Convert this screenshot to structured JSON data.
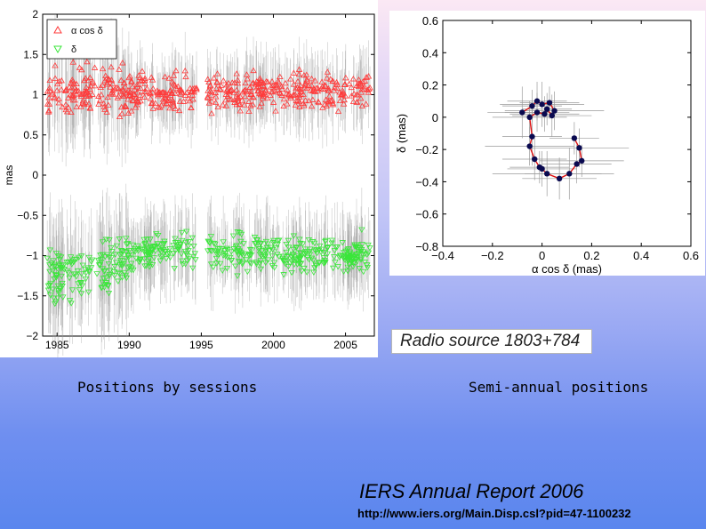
{
  "captions": {
    "left": "Positions by sessions",
    "right": "Semi-annual positions",
    "source": "Radio source 1803+784",
    "report": "IERS Annual Report 2006",
    "url": "http://www.iers.org/Main.Disp.csl?pid=47-1100232"
  },
  "colors": {
    "alpha": "#ff3a3a",
    "delta": "#3ae63a",
    "errorbar": "#9a9a9a",
    "track": "#dd1111",
    "point": "#0a0a50"
  },
  "chart_data": [
    {
      "type": "scatter",
      "title": "",
      "xlabel": "",
      "ylabel": "mas",
      "xlim": [
        1984,
        2007
      ],
      "ylim": [
        -2,
        2
      ],
      "x_ticks": [
        1985,
        1990,
        1995,
        2000,
        2005
      ],
      "y_ticks": [
        2,
        1.5,
        1,
        0.5,
        0,
        -0.5,
        -1,
        -1.5,
        -2
      ],
      "y_tick_labels": [
        "2",
        "1.5",
        "1",
        "0.5",
        "0",
        "−0.5",
        "−1",
        "−1.5",
        "−2"
      ],
      "legend": {
        "position": "top-left",
        "entries": [
          "α cos δ",
          "δ"
        ]
      },
      "series": [
        {
          "name": "α cos δ",
          "marker": "triangle-up",
          "mean": 1.05,
          "mean_trend": [
            [
              1984,
              1.0
            ],
            [
              1995,
              1.02
            ],
            [
              2007,
              1.05
            ]
          ],
          "spread": 0.22,
          "error": 0.3
        },
        {
          "name": "δ",
          "marker": "triangle-down",
          "mean": -1.05,
          "mean_trend": [
            [
              1984,
              -1.3
            ],
            [
              1988,
              -1.15
            ],
            [
              1991,
              -0.95
            ],
            [
              1995,
              -0.95
            ],
            [
              2007,
              -1.0
            ]
          ],
          "spread": 0.22,
          "error": 0.35
        }
      ],
      "observation_gaps": [
        [
          1994.7,
          1995.4
        ]
      ]
    },
    {
      "type": "line",
      "title": "",
      "xlabel": "α cos δ (mas)",
      "ylabel": "δ (mas)",
      "xlim": [
        -0.4,
        0.6
      ],
      "ylim": [
        -0.8,
        0.6
      ],
      "x_ticks": [
        -0.4,
        -0.2,
        0,
        0.2,
        0.4,
        0.6
      ],
      "x_tick_labels": [
        "−0.4",
        "−0.2",
        "0",
        "0.2",
        "0.4",
        "0.6"
      ],
      "y_ticks": [
        0.6,
        0.4,
        0.2,
        0,
        -0.2,
        -0.4,
        -0.6,
        -0.8
      ],
      "y_tick_labels": [
        "0.6",
        "0.4",
        "0.2",
        "0",
        "−0.2",
        "−0.4",
        "−0.6",
        "−0.8"
      ],
      "points": [
        {
          "x": -0.08,
          "y": 0.03
        },
        {
          "x": -0.04,
          "y": 0.07
        },
        {
          "x": -0.02,
          "y": 0.1
        },
        {
          "x": 0.0,
          "y": 0.08
        },
        {
          "x": 0.03,
          "y": 0.09
        },
        {
          "x": 0.05,
          "y": 0.04
        },
        {
          "x": 0.04,
          "y": 0.01
        },
        {
          "x": 0.02,
          "y": 0.05
        },
        {
          "x": 0.01,
          "y": 0.02
        },
        {
          "x": -0.02,
          "y": 0.03
        },
        {
          "x": -0.05,
          "y": 0.0
        },
        {
          "x": -0.04,
          "y": -0.12
        },
        {
          "x": -0.05,
          "y": -0.18
        },
        {
          "x": -0.03,
          "y": -0.26
        },
        {
          "x": -0.01,
          "y": -0.31
        },
        {
          "x": 0.0,
          "y": -0.32
        },
        {
          "x": 0.02,
          "y": -0.35
        },
        {
          "x": 0.07,
          "y": -0.38
        },
        {
          "x": 0.11,
          "y": -0.35
        },
        {
          "x": 0.14,
          "y": -0.29
        },
        {
          "x": 0.16,
          "y": -0.27
        },
        {
          "x": 0.15,
          "y": -0.19
        },
        {
          "x": 0.13,
          "y": -0.13
        }
      ],
      "x_errors": [
        0.14,
        0.12,
        0.12,
        0.17,
        0.12,
        0.2,
        0.16,
        0.1,
        0.14,
        0.13,
        0.15,
        0.12,
        0.18,
        0.13,
        0.12,
        0.14,
        0.22,
        0.15,
        0.18,
        0.14,
        0.17,
        0.2,
        0.1
      ],
      "y_errors": [
        0.16,
        0.1,
        0.12,
        0.14,
        0.1,
        0.12,
        0.13,
        0.1,
        0.11,
        0.12,
        0.1,
        0.18,
        0.12,
        0.13,
        0.1,
        0.11,
        0.14,
        0.13,
        0.16,
        0.12,
        0.1,
        0.12,
        0.1
      ]
    }
  ]
}
